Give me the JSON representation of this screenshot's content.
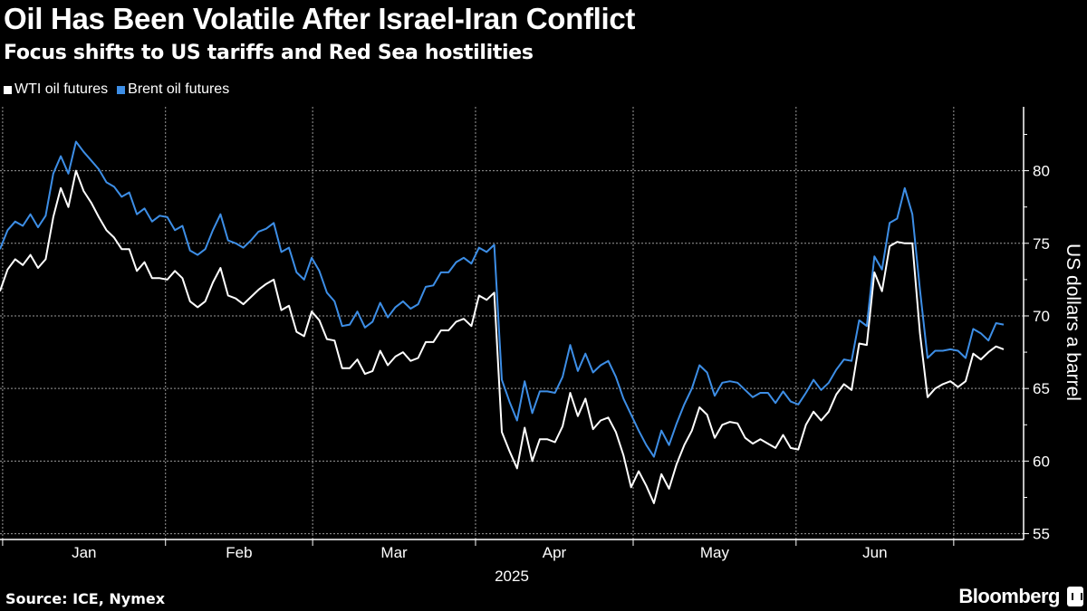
{
  "title": "Oil Has Been Volatile After Israel-Iran Conflict",
  "subtitle": "Focus shifts to US tariffs and Red Sea hostilities",
  "source": "Source: ICE, Nymex",
  "brand": "Bloomberg",
  "chart_data": {
    "type": "line",
    "title": "Oil Has Been Volatile After Israel-Iran Conflict",
    "xlabel": "2025",
    "ylabel": "US dollars a barrel",
    "x_unit": "days since 2025-01-01",
    "x_first_day": -0.5,
    "x_last_day": 190.5,
    "xlim": [
      -0.5,
      194.3
    ],
    "ylim": [
      54.6,
      84.4
    ],
    "y_ticks": [
      55,
      60,
      65,
      70,
      75,
      80
    ],
    "x_ticks": [
      {
        "label": "Jan",
        "start_day": 0
      },
      {
        "label": "Feb",
        "start_day": 31
      },
      {
        "label": "Mar",
        "start_day": 59
      },
      {
        "label": "Apr",
        "start_day": 90
      },
      {
        "label": "May",
        "start_day": 120
      },
      {
        "label": "Jun",
        "start_day": 151
      },
      {
        "label": "",
        "start_day": 181
      }
    ],
    "grid": true,
    "legend_position": "top-left",
    "series": [
      {
        "name": "WTI oil futures",
        "color": "#ffffff",
        "values": [
          71.7,
          73.2,
          73.9,
          73.5,
          74.2,
          73.3,
          73.9,
          76.8,
          78.8,
          77.5,
          80.0,
          78.6,
          77.8,
          76.8,
          75.9,
          75.4,
          74.6,
          74.6,
          73.1,
          73.7,
          72.6,
          72.6,
          72.5,
          73.1,
          72.6,
          71.0,
          70.6,
          71.0,
          72.3,
          73.3,
          71.4,
          71.2,
          70.8,
          71.3,
          71.8,
          72.2,
          72.5,
          70.4,
          70.7,
          68.9,
          68.6,
          70.3,
          69.7,
          68.4,
          68.3,
          66.4,
          66.4,
          67.0,
          66.0,
          66.2,
          67.6,
          66.6,
          67.2,
          67.5,
          66.9,
          67.1,
          68.2,
          68.2,
          69.0,
          69.0,
          69.6,
          69.8,
          69.3,
          71.4,
          71.1,
          71.6,
          62.0,
          60.7,
          59.5,
          62.3,
          60.0,
          61.5,
          61.5,
          61.3,
          62.4,
          64.7,
          63.1,
          64.3,
          62.2,
          62.8,
          63.0,
          62.0,
          60.4,
          58.2,
          59.3,
          58.3,
          57.1,
          59.1,
          58.1,
          59.8,
          61.1,
          62.1,
          63.7,
          63.2,
          61.6,
          62.5,
          62.7,
          62.6,
          61.6,
          61.2,
          61.5,
          61.2,
          60.9,
          61.8,
          60.9,
          60.8,
          62.5,
          63.4,
          62.8,
          63.4,
          64.6,
          65.3,
          64.9,
          68.1,
          68.0,
          73.0,
          71.7,
          74.8,
          75.1,
          75.0,
          75.0,
          68.8,
          64.4,
          65.0,
          65.3,
          65.5,
          65.1,
          65.5,
          67.4,
          67.0,
          67.5,
          67.9,
          67.7
        ]
      },
      {
        "name": "Brent oil futures",
        "color": "#3d8ee6",
        "values": [
          74.6,
          75.9,
          76.5,
          76.2,
          77.0,
          76.1,
          76.9,
          79.8,
          81.0,
          79.8,
          82.0,
          81.3,
          80.7,
          80.1,
          79.2,
          78.9,
          78.2,
          78.5,
          77.0,
          77.4,
          76.5,
          76.9,
          76.8,
          75.9,
          76.2,
          74.5,
          74.2,
          74.6,
          75.9,
          77.0,
          75.2,
          75.0,
          74.7,
          75.2,
          75.8,
          76.0,
          76.4,
          74.4,
          74.7,
          73.0,
          72.5,
          74.0,
          73.1,
          71.6,
          71.0,
          69.3,
          69.4,
          70.3,
          69.2,
          69.6,
          70.9,
          69.9,
          70.6,
          71.0,
          70.5,
          70.8,
          72.0,
          72.1,
          73.0,
          73.0,
          73.7,
          74.0,
          73.6,
          74.7,
          74.4,
          74.9,
          65.6,
          64.1,
          62.8,
          65.5,
          63.3,
          64.8,
          64.8,
          64.7,
          65.8,
          68.0,
          66.2,
          67.4,
          66.1,
          66.6,
          66.9,
          65.8,
          64.3,
          63.2,
          62.1,
          61.1,
          60.3,
          62.1,
          61.1,
          62.6,
          63.9,
          65.0,
          66.6,
          66.1,
          64.5,
          65.4,
          65.5,
          65.4,
          64.9,
          64.4,
          64.7,
          64.7,
          64.0,
          64.8,
          64.1,
          63.9,
          64.7,
          65.6,
          64.9,
          65.4,
          66.3,
          67.0,
          66.9,
          69.7,
          69.3,
          74.1,
          73.2,
          76.4,
          76.7,
          78.8,
          77.0,
          71.8,
          67.1,
          67.6,
          67.6,
          67.7,
          67.6,
          67.1,
          69.1,
          68.8,
          68.3,
          69.5,
          69.4
        ]
      }
    ]
  }
}
